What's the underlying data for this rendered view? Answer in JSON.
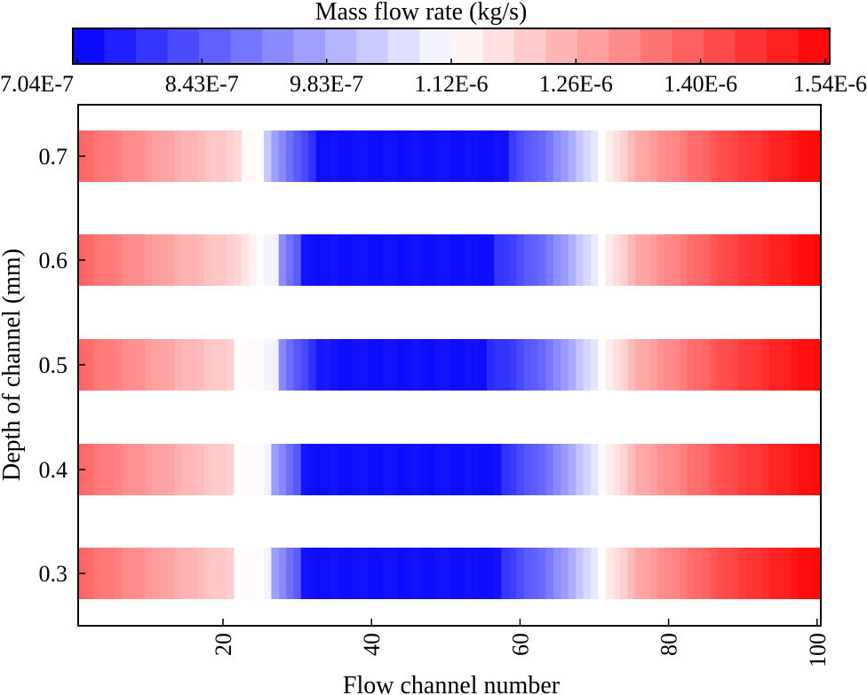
{
  "chart_data": {
    "type": "heatmap",
    "colorbar": {
      "title": "Mass flow rate  (kg/s)",
      "min": 7.04e-07,
      "max": 1.54e-06,
      "segments": 24,
      "tick_labels": [
        "7.04E-7",
        "8.43E-7",
        "9.83E-7",
        "1.12E-6",
        "1.26E-6",
        "1.40E-6",
        "1.54E-6"
      ],
      "colors": {
        "low": "#0000ff",
        "mid": "#ffffff",
        "high": "#ff0000"
      }
    },
    "xlabel": "Flow channel number",
    "ylabel": "Depth of channel (mm)",
    "xlim": [
      1,
      101
    ],
    "x_ticks": [
      20,
      40,
      60,
      80,
      100
    ],
    "x_tick_labels": [
      "20",
      "40",
      "60",
      "80",
      "100"
    ],
    "y_tick_labels": [
      "0.7",
      "0.6",
      "0.5",
      "0.4",
      "0.3"
    ],
    "channels": 100,
    "profile_points": {
      "channel": [
        1,
        10,
        22,
        25,
        27,
        33,
        48,
        58,
        64,
        68,
        71,
        76,
        88,
        100
      ],
      "value": [
        1.37e-06,
        1.29e-06,
        1.19e-06,
        1.11e-06,
        9.6e-07,
        7.5e-07,
        7.3e-07,
        7.9e-07,
        9e-07,
        1.02e-06,
        1.12e-06,
        1.26e-06,
        1.42e-06,
        1.53e-06
      ]
    },
    "series": [
      {
        "name": "0.7",
        "white_start": 22.5,
        "white_end": 25.8,
        "blue_start": 33,
        "blue_end": 58,
        "offset": 0.0
      },
      {
        "name": "0.6",
        "white_start": 24.5,
        "white_end": 27.5,
        "blue_start": 31,
        "blue_end": 56,
        "offset": 3e-09
      },
      {
        "name": "0.5",
        "white_start": 21.5,
        "white_end": 27.0,
        "blue_start": 35,
        "blue_end": 55,
        "offset": -2e-09
      },
      {
        "name": "0.4",
        "white_start": 22.0,
        "white_end": 26.5,
        "blue_start": 31,
        "blue_end": 57,
        "offset": -4e-09
      },
      {
        "name": "0.3",
        "white_start": 22.0,
        "white_end": 26.5,
        "blue_start": 31,
        "blue_end": 57,
        "offset": 2e-09
      }
    ]
  }
}
